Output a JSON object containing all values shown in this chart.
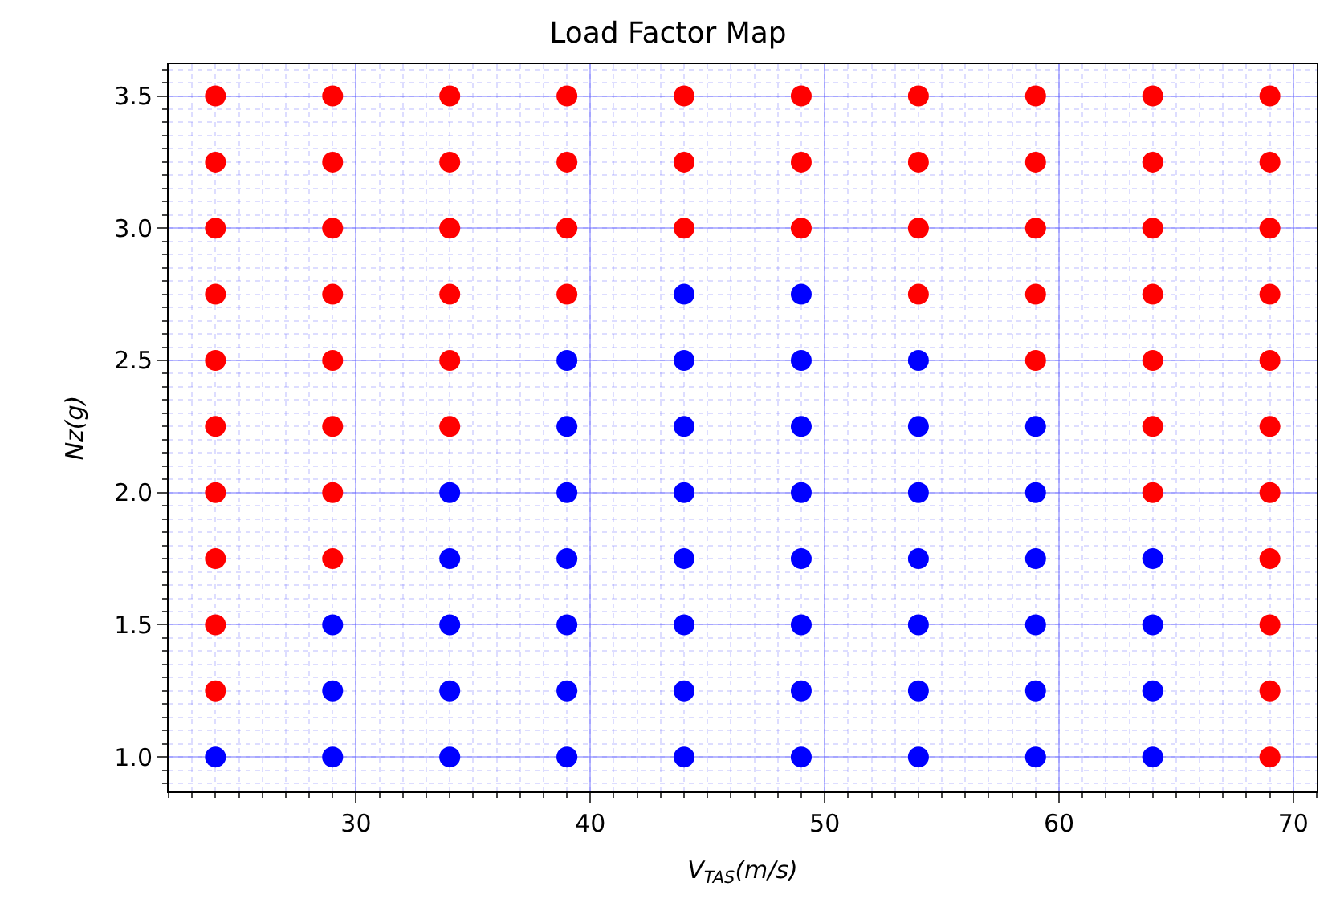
{
  "chart_data": {
    "type": "scatter",
    "title": "Load Factor Map",
    "xlabel": "V$_{TAS}$(m/s)",
    "ylabel": "Nz(g)",
    "xlim": [
      22,
      71
    ],
    "xticks": [
      30,
      40,
      50,
      60,
      70
    ],
    "ylim": [
      0.87,
      3.62
    ],
    "yticks": [
      {
        "value": 1.0,
        "label": "1.0"
      },
      {
        "value": 1.5,
        "label": "1.5"
      },
      {
        "value": 2.0,
        "label": "2.0"
      },
      {
        "value": 2.5,
        "label": "2.5"
      },
      {
        "value": 3.0,
        "label": "3.0"
      },
      {
        "value": 3.5,
        "label": "3.5"
      }
    ],
    "grid": true,
    "marker": "circle",
    "series": [
      {
        "color": "#0000ff",
        "x": [
          24,
          29,
          29,
          29,
          34,
          34,
          34,
          34,
          34,
          39,
          39,
          39,
          39,
          39,
          39,
          39,
          44,
          44,
          44,
          44,
          44,
          44,
          44,
          44,
          49,
          49,
          49,
          49,
          49,
          49,
          49,
          49,
          54,
          54,
          54,
          54,
          54,
          54,
          54,
          59,
          59,
          59,
          59,
          59,
          59,
          64,
          64,
          64,
          64
        ],
        "values": [
          1.0,
          1.0,
          1.25,
          1.5,
          1.0,
          1.25,
          1.5,
          1.75,
          2.0,
          1.0,
          1.25,
          1.5,
          1.75,
          2.0,
          2.25,
          2.5,
          1.0,
          1.25,
          1.5,
          1.75,
          2.0,
          2.25,
          2.5,
          2.75,
          1.0,
          1.25,
          1.5,
          1.75,
          2.0,
          2.25,
          2.5,
          2.75,
          1.0,
          1.25,
          1.5,
          1.75,
          2.0,
          2.25,
          2.5,
          1.0,
          1.25,
          1.5,
          1.75,
          2.0,
          2.25,
          1.0,
          1.25,
          1.5,
          1.75
        ]
      },
      {
        "color": "#ff0000",
        "x": [
          24,
          24,
          24,
          24,
          24,
          24,
          24,
          24,
          24,
          24,
          29,
          29,
          29,
          29,
          29,
          29,
          29,
          29,
          34,
          34,
          34,
          34,
          34,
          34,
          39,
          39,
          39,
          39,
          44,
          44,
          44,
          49,
          49,
          49,
          54,
          54,
          54,
          54,
          59,
          59,
          59,
          59,
          59,
          64,
          64,
          64,
          64,
          64,
          64,
          64,
          69,
          69,
          69,
          69,
          69,
          69,
          69,
          69,
          69,
          69,
          69
        ],
        "values": [
          1.25,
          1.5,
          1.75,
          2.0,
          2.25,
          2.5,
          2.75,
          3.0,
          3.25,
          3.5,
          1.75,
          2.0,
          2.25,
          2.5,
          2.75,
          3.0,
          3.25,
          3.5,
          2.25,
          2.5,
          2.75,
          3.0,
          3.25,
          3.5,
          2.75,
          3.0,
          3.25,
          3.5,
          3.0,
          3.25,
          3.5,
          3.0,
          3.25,
          3.5,
          2.75,
          3.0,
          3.25,
          3.5,
          2.5,
          2.75,
          3.0,
          3.25,
          3.5,
          2.0,
          2.25,
          2.5,
          2.75,
          3.0,
          3.25,
          3.5,
          1.0,
          1.25,
          1.5,
          1.75,
          2.0,
          2.25,
          2.5,
          2.75,
          3.0,
          3.25,
          3.5
        ]
      }
    ]
  }
}
